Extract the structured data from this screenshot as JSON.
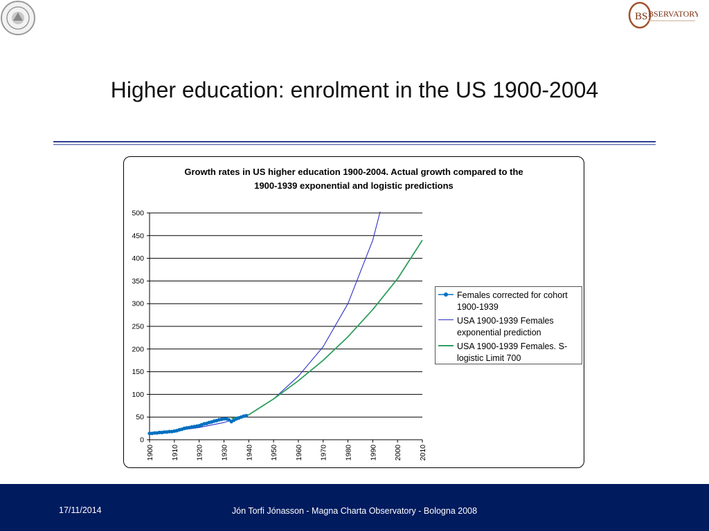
{
  "slide": {
    "title": "Higher education: enrolment in the US 1900-2004",
    "logo_right_text": "BSERVATORY"
  },
  "footer": {
    "date": "17/11/2014",
    "credit": "Jón Torfi Jónasson - Magna Charta Observatory - Bologna 2008"
  },
  "colors": {
    "actual": "#0070c0",
    "exponential": "#2b2fc6",
    "logistic": "#2e9e5e",
    "footer_bg": "#001b5e",
    "rule": "#2b3d8f"
  },
  "chart_data": {
    "type": "line",
    "title_line1": "Growth rates in US higher education 1900-2004. Actual growth compared to the",
    "title_line2": "1900-1939 exponential and logistic predictions",
    "xlabel": "",
    "ylabel": "",
    "xlim": [
      1900,
      2010
    ],
    "ylim": [
      0,
      500
    ],
    "x_ticks": [
      "1900",
      "1910",
      "1920",
      "1930",
      "1940",
      "1950",
      "1960",
      "1970",
      "1980",
      "1990",
      "2000",
      "2010"
    ],
    "y_ticks": [
      "0",
      "50",
      "100",
      "150",
      "200",
      "250",
      "300",
      "350",
      "400",
      "450",
      "500"
    ],
    "grid": "horizontal",
    "legend_position": "right",
    "series": [
      {
        "name": "Females corrected for cohort 1900-1939",
        "style": "line-markers",
        "x": [
          1900,
          1901,
          1902,
          1903,
          1904,
          1905,
          1906,
          1907,
          1908,
          1909,
          1910,
          1911,
          1912,
          1913,
          1914,
          1915,
          1916,
          1917,
          1918,
          1919,
          1920,
          1921,
          1922,
          1923,
          1924,
          1925,
          1926,
          1927,
          1928,
          1929,
          1930,
          1931,
          1932,
          1933,
          1934,
          1935,
          1936,
          1937,
          1938,
          1939
        ],
        "y": [
          14,
          14,
          15,
          15,
          16,
          16,
          17,
          17,
          18,
          18,
          19,
          20,
          22,
          23,
          25,
          26,
          27,
          28,
          29,
          30,
          31,
          33,
          35,
          36,
          38,
          39,
          41,
          42,
          44,
          45,
          46,
          46,
          44,
          40,
          43,
          46,
          48,
          50,
          52,
          53
        ]
      },
      {
        "name": "USA 1900-1939 Females exponential prediction",
        "style": "line",
        "x": [
          1900,
          1910,
          1920,
          1930,
          1940,
          1950,
          1960,
          1970,
          1980,
          1990,
          1993
        ],
        "y": [
          14,
          19.5,
          27,
          38,
          55,
          90,
          140,
          205,
          300,
          440,
          503
        ]
      },
      {
        "name": "USA 1900-1939 Females. S-logistic  Limit 700",
        "style": "line",
        "x": [
          1933,
          1940,
          1950,
          1960,
          1970,
          1980,
          1990,
          2000,
          2010
        ],
        "y": [
          47,
          55,
          90,
          130,
          175,
          227,
          287,
          355,
          440
        ]
      }
    ]
  }
}
